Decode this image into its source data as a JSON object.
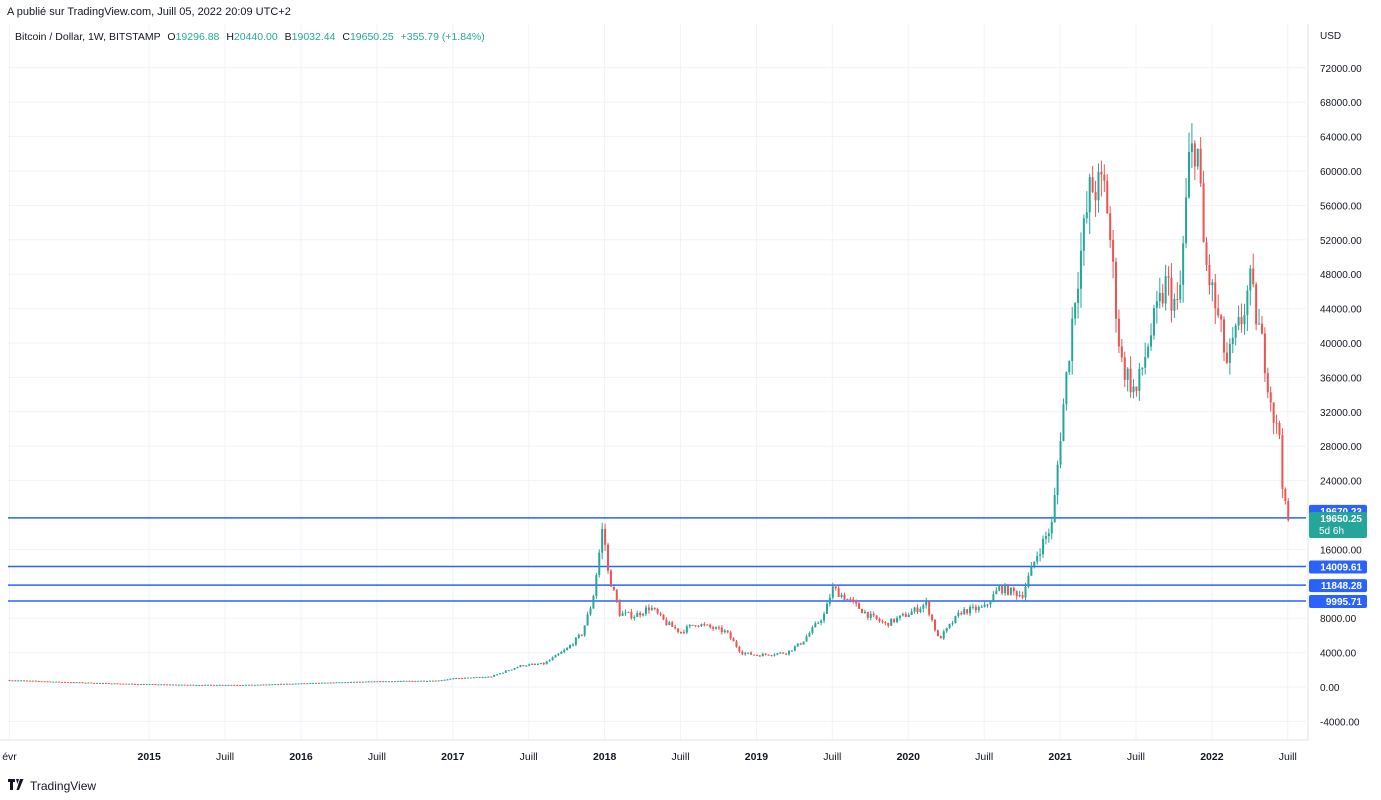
{
  "header": {
    "published": "A publié sur TradingView.com, Juill 05, 2022 20:09 UTC+2"
  },
  "legend": {
    "symbol": "Bitcoin / Dollar, 1W, BITSTAMP",
    "o_label": "O",
    "o": "19296.88",
    "h_label": "H",
    "h": "20440.00",
    "b_label": "B",
    "b": "19032.44",
    "c_label": "C",
    "c": "19650.25",
    "change": "+355.79 (+1.84%)"
  },
  "footer": {
    "brand": "TradingView",
    "logo": "tradingview-logo-icon"
  },
  "colors": {
    "up": "#26a69a",
    "down": "#ef5350",
    "hline": "#2962ff",
    "grid": "#f0f3fa"
  },
  "chart_data": {
    "type": "candlestick",
    "currency": "USD",
    "y_ticks": [
      "72000.00",
      "68000.00",
      "64000.00",
      "60000.00",
      "56000.00",
      "52000.00",
      "48000.00",
      "44000.00",
      "40000.00",
      "36000.00",
      "32000.00",
      "28000.00",
      "24000.00",
      "16000.00",
      "8000.00",
      "4000.00",
      "0.00",
      "-4000.00"
    ],
    "ylim": [
      -5000,
      75000
    ],
    "x_ticks": [
      {
        "label": "évr",
        "t": 2014.08,
        "bold": false
      },
      {
        "label": "2015",
        "t": 2015.0,
        "bold": true
      },
      {
        "label": "Juill",
        "t": 2015.5,
        "bold": false
      },
      {
        "label": "2016",
        "t": 2016.0,
        "bold": true
      },
      {
        "label": "Juill",
        "t": 2016.5,
        "bold": false
      },
      {
        "label": "2017",
        "t": 2017.0,
        "bold": true
      },
      {
        "label": "Juill",
        "t": 2017.5,
        "bold": false
      },
      {
        "label": "2018",
        "t": 2018.0,
        "bold": true
      },
      {
        "label": "Juill",
        "t": 2018.5,
        "bold": false
      },
      {
        "label": "2019",
        "t": 2019.0,
        "bold": true
      },
      {
        "label": "Juill",
        "t": 2019.5,
        "bold": false
      },
      {
        "label": "2020",
        "t": 2020.0,
        "bold": true
      },
      {
        "label": "Juill",
        "t": 2020.5,
        "bold": false
      },
      {
        "label": "2021",
        "t": 2021.0,
        "bold": true
      },
      {
        "label": "Juill",
        "t": 2021.5,
        "bold": false
      },
      {
        "label": "2022",
        "t": 2022.0,
        "bold": true
      },
      {
        "label": "Juill",
        "t": 2022.5,
        "bold": false
      }
    ],
    "xlim": [
      2014.07,
      2022.62
    ],
    "horizontal_levels": [
      {
        "value": 19670.23,
        "label": "19670.23"
      },
      {
        "value": 14009.61,
        "label": "14009.61"
      },
      {
        "value": 11848.28,
        "label": "11848.28"
      },
      {
        "value": 9995.71,
        "label": "9995.71"
      }
    ],
    "last_price": {
      "value": 19650.25,
      "label": "19650.25",
      "countdown": "5d 6h"
    },
    "price_path": [
      [
        2014.08,
        800
      ],
      [
        2014.4,
        600
      ],
      [
        2014.9,
        350
      ],
      [
        2015.3,
        240
      ],
      [
        2015.7,
        250
      ],
      [
        2016.0,
        420
      ],
      [
        2016.5,
        650
      ],
      [
        2016.9,
        750
      ],
      [
        2017.0,
        980
      ],
      [
        2017.25,
        1200
      ],
      [
        2017.45,
        2500
      ],
      [
        2017.6,
        2700
      ],
      [
        2017.75,
        4400
      ],
      [
        2017.85,
        6200
      ],
      [
        2017.92,
        10000
      ],
      [
        2017.96,
        15000
      ],
      [
        2017.99,
        19000
      ],
      [
        2018.02,
        13500
      ],
      [
        2018.1,
        8500
      ],
      [
        2018.2,
        8300
      ],
      [
        2018.3,
        9300
      ],
      [
        2018.4,
        7500
      ],
      [
        2018.5,
        6400
      ],
      [
        2018.6,
        7400
      ],
      [
        2018.8,
        6400
      ],
      [
        2018.9,
        4000
      ],
      [
        2019.0,
        3700
      ],
      [
        2019.2,
        4000
      ],
      [
        2019.3,
        5200
      ],
      [
        2019.45,
        8500
      ],
      [
        2019.5,
        11500
      ],
      [
        2019.6,
        10200
      ],
      [
        2019.75,
        8200
      ],
      [
        2019.85,
        7300
      ],
      [
        2020.0,
        8500
      ],
      [
        2020.12,
        9700
      ],
      [
        2020.2,
        5500
      ],
      [
        2020.35,
        8800
      ],
      [
        2020.5,
        9200
      ],
      [
        2020.6,
        11500
      ],
      [
        2020.75,
        10700
      ],
      [
        2020.85,
        15500
      ],
      [
        2020.95,
        19000
      ],
      [
        2021.0,
        29000
      ],
      [
        2021.1,
        46000
      ],
      [
        2021.2,
        58000
      ],
      [
        2021.3,
        58000
      ],
      [
        2021.4,
        38000
      ],
      [
        2021.5,
        34000
      ],
      [
        2021.58,
        40000
      ],
      [
        2021.7,
        47000
      ],
      [
        2021.78,
        43500
      ],
      [
        2021.85,
        61000
      ],
      [
        2021.9,
        64000
      ],
      [
        2021.95,
        50000
      ],
      [
        2022.05,
        42000
      ],
      [
        2022.1,
        37500
      ],
      [
        2022.2,
        43000
      ],
      [
        2022.25,
        47000
      ],
      [
        2022.35,
        38000
      ],
      [
        2022.42,
        30000
      ],
      [
        2022.45,
        29500
      ],
      [
        2022.47,
        22000
      ],
      [
        2022.5,
        19200
      ],
      [
        2022.52,
        19650
      ]
    ]
  }
}
